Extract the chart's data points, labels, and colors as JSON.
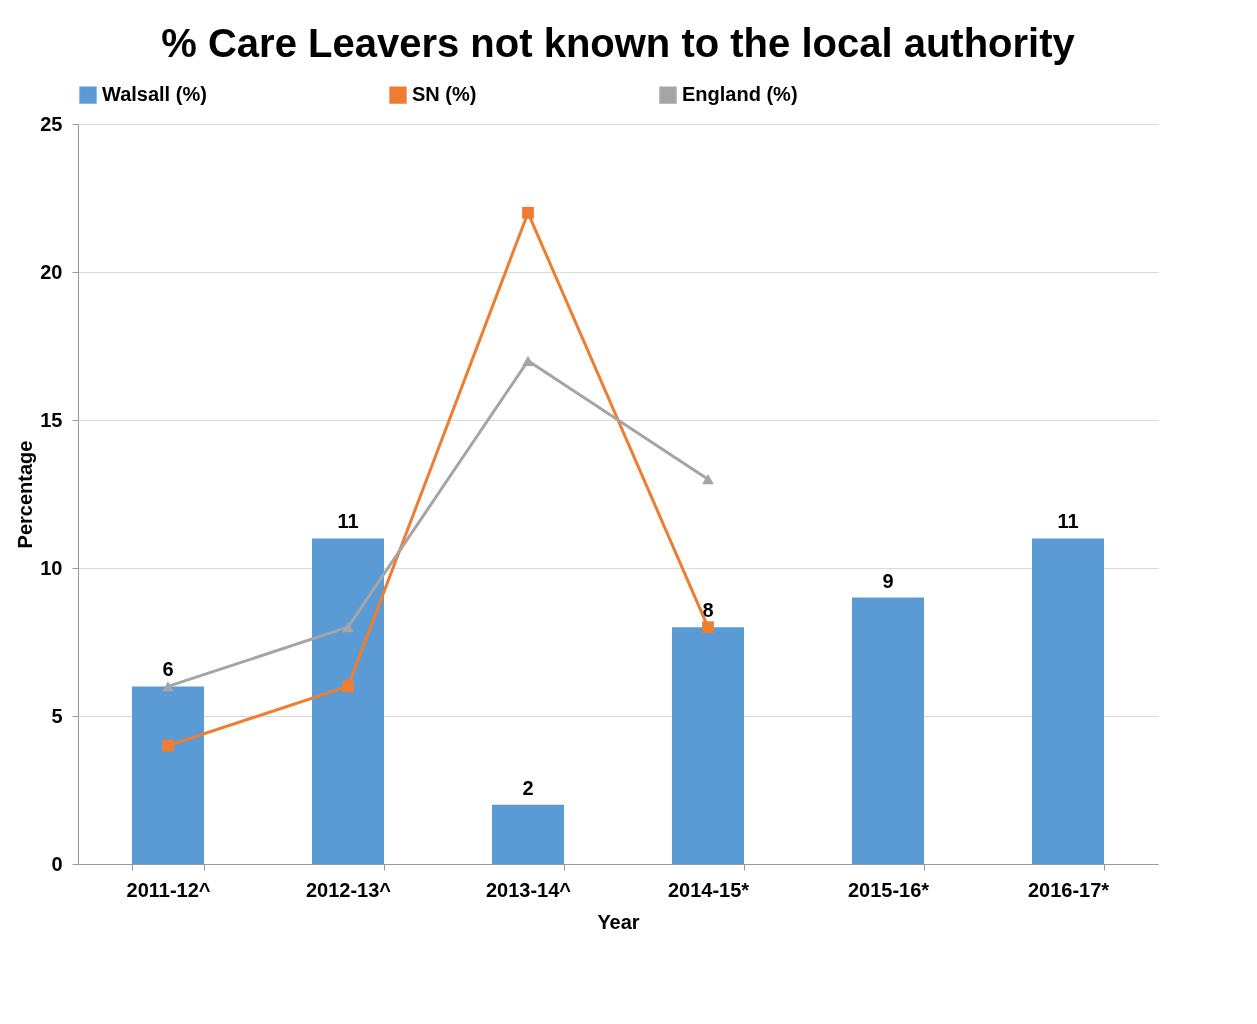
{
  "chart_data": {
    "type": "bar",
    "title": "% Care Leavers not known to the local authority",
    "xlabel": "Year",
    "ylabel": "Percentage",
    "categories": [
      "2011-12^",
      "2012-13^",
      "2013-14^",
      "2014-15*",
      "2015-16*",
      "2016-17*"
    ],
    "series": [
      {
        "name": "Walsall (%)",
        "color": "#5b9bd5",
        "values": [
          6,
          11,
          2,
          8,
          9,
          11
        ],
        "value_labels": [
          "6",
          "11",
          "2",
          "8",
          "9",
          "11"
        ]
      },
      {
        "name": "SN (%)",
        "type": "line",
        "marker": "square",
        "color": "#ed7d31",
        "values": [
          4,
          6,
          22,
          8,
          null,
          null
        ]
      },
      {
        "name": "England (%)",
        "type": "line",
        "marker": "triangle",
        "color": "#a5a5a5",
        "values": [
          6,
          8,
          17,
          13,
          null,
          null
        ]
      }
    ],
    "ylim": [
      0,
      25
    ],
    "yticks": [
      0,
      5,
      10,
      15,
      20,
      25
    ],
    "grid": "y",
    "legend": "top"
  }
}
